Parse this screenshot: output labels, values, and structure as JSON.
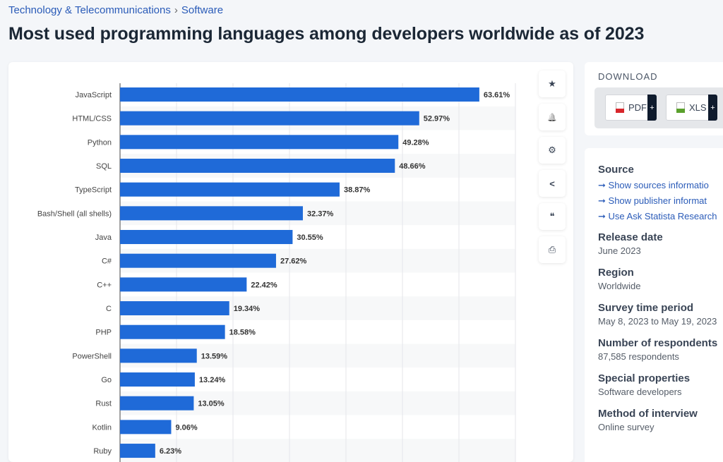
{
  "breadcrumb": {
    "items": [
      "Technology & Telecommunications",
      "Software"
    ],
    "separator": "›"
  },
  "title": "Most used programming languages among developers worldwide as of 2023",
  "chart_data": {
    "type": "bar",
    "orientation": "horizontal",
    "categories": [
      "JavaScript",
      "HTML/CSS",
      "Python",
      "SQL",
      "TypeScript",
      "Bash/Shell (all shells)",
      "Java",
      "C#",
      "C++",
      "C",
      "PHP",
      "PowerShell",
      "Go",
      "Rust",
      "Kotlin",
      "Ruby"
    ],
    "values": [
      63.61,
      52.97,
      49.28,
      48.66,
      38.87,
      32.37,
      30.55,
      27.62,
      22.42,
      19.34,
      18.58,
      13.59,
      13.24,
      13.05,
      9.06,
      6.23
    ],
    "data_labels": [
      "63.61%",
      "52.97%",
      "49.28%",
      "48.66%",
      "38.87%",
      "32.37%",
      "30.55%",
      "27.62%",
      "22.42%",
      "19.34%",
      "18.58%",
      "13.59%",
      "13.24%",
      "13.05%",
      "9.06%",
      "6.23%"
    ],
    "xlim": [
      0,
      70
    ],
    "grid": true,
    "bar_color": "#1f6ad8",
    "title": "",
    "xlabel": "",
    "ylabel": ""
  },
  "tools": [
    {
      "icon": "star-icon",
      "glyph": "★"
    },
    {
      "icon": "bell-icon",
      "glyph": "🔔"
    },
    {
      "icon": "gear-icon",
      "glyph": "⚙"
    },
    {
      "icon": "share-icon",
      "glyph": "<"
    },
    {
      "icon": "quote-icon",
      "glyph": "❝"
    },
    {
      "icon": "print-icon",
      "glyph": "⎙"
    }
  ],
  "download": {
    "label": "DOWNLOAD",
    "pdf": "PDF",
    "xls": "XLS",
    "plus": "+"
  },
  "info": {
    "source_title": "Source",
    "links": [
      "Show sources informatio",
      "Show publisher informat",
      "Use Ask Statista Research"
    ],
    "arrow": "➞",
    "fields": [
      {
        "label": "Release date",
        "value": "June 2023"
      },
      {
        "label": "Region",
        "value": "Worldwide"
      },
      {
        "label": "Survey time period",
        "value": "May 8, 2023 to May 19, 2023"
      },
      {
        "label": "Number of respondents",
        "value": "87,585 respondents"
      },
      {
        "label": "Special properties",
        "value": "Software developers"
      },
      {
        "label": "Method of interview",
        "value": "Online survey"
      }
    ]
  }
}
